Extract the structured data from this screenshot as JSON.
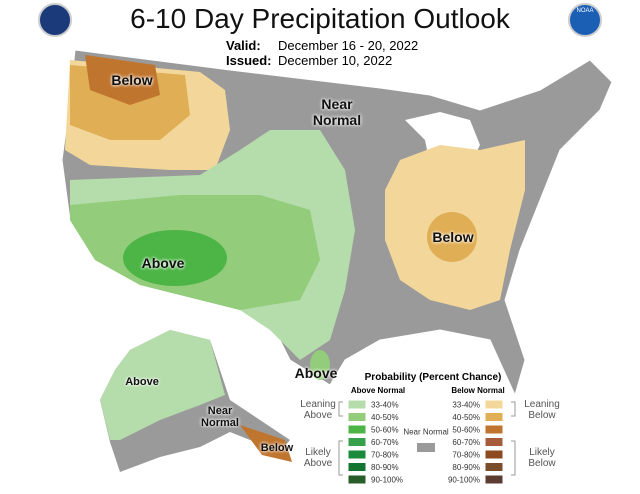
{
  "header": {
    "title": "6-10 Day Precipitation Outlook",
    "valid_label": "Valid:",
    "valid": "December 16 - 20, 2022",
    "issued_label": "Issued:",
    "issued": "December 10, 2022",
    "noaa_logo_text": "NOAA"
  },
  "map_labels": [
    "Below",
    "Near Normal",
    "Below",
    "Above",
    "Above",
    "Above",
    "Near Normal",
    "Below"
  ],
  "legend": {
    "title": "Probability (Percent Chance)",
    "above_header": "Above Normal",
    "below_header": "Below Normal",
    "above": {
      "labels": [
        "33-40%",
        "40-50%",
        "50-60%",
        "60-70%",
        "70-80%",
        "80-90%",
        "90-100%"
      ],
      "colors": [
        "#b5dcab",
        "#93cc7a",
        "#4cb545",
        "#36a04a",
        "#1b8a3b",
        "#127530",
        "#285e2a"
      ]
    },
    "below": {
      "labels": [
        "33-40%",
        "40-50%",
        "50-60%",
        "60-70%",
        "70-80%",
        "80-90%",
        "90-100%"
      ],
      "colors": [
        "#f3d79a",
        "#e0ae54",
        "#c0752e",
        "#a65c3a",
        "#8e4a1f",
        "#7a4d2b",
        "#5c3b30"
      ]
    },
    "near_normal": {
      "label": "Near Normal",
      "color": "#9a9a9a"
    },
    "groups": {
      "leaning_above": "Leaning Above",
      "likely_above": "Likely Above",
      "leaning_below": "Leaning Below",
      "likely_below": "Likely Below"
    }
  }
}
